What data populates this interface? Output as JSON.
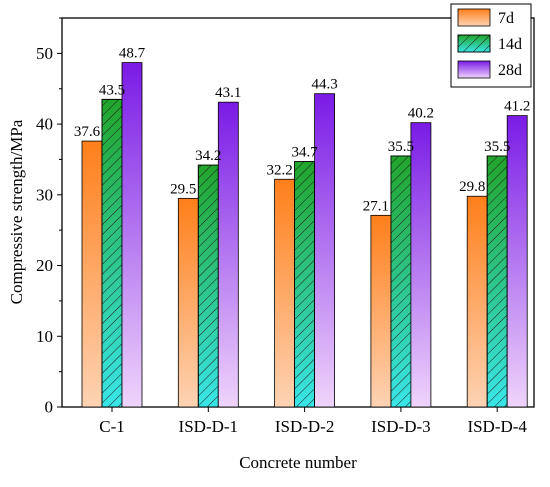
{
  "chart_data": {
    "type": "bar",
    "categories": [
      "C-1",
      "ISD-D-1",
      "ISD-D-2",
      "ISD-D-3",
      "ISD-D-4"
    ],
    "series": [
      {
        "name": "7d",
        "values": [
          37.6,
          29.5,
          32.2,
          27.1,
          29.8
        ]
      },
      {
        "name": "14d",
        "values": [
          43.5,
          34.2,
          34.7,
          35.5,
          35.5
        ]
      },
      {
        "name": "28d",
        "values": [
          48.7,
          43.1,
          44.3,
          40.2,
          41.2
        ]
      }
    ],
    "xlabel": "Concrete number",
    "ylabel": "Compressive strength/MPa",
    "ylim": [
      0,
      55
    ],
    "yticks": [
      0,
      10,
      20,
      30,
      40,
      50
    ],
    "grid": false,
    "legend_position": "top-right",
    "colors": {
      "7d": {
        "top": "#ff7f1a",
        "bottom": "#fdd3b4"
      },
      "14d": {
        "top": "#22a52b",
        "bottom": "#39e5e8",
        "pattern": "diagonal-hatch"
      },
      "28d": {
        "top": "#7a1be6",
        "bottom": "#efd4fb"
      }
    }
  }
}
